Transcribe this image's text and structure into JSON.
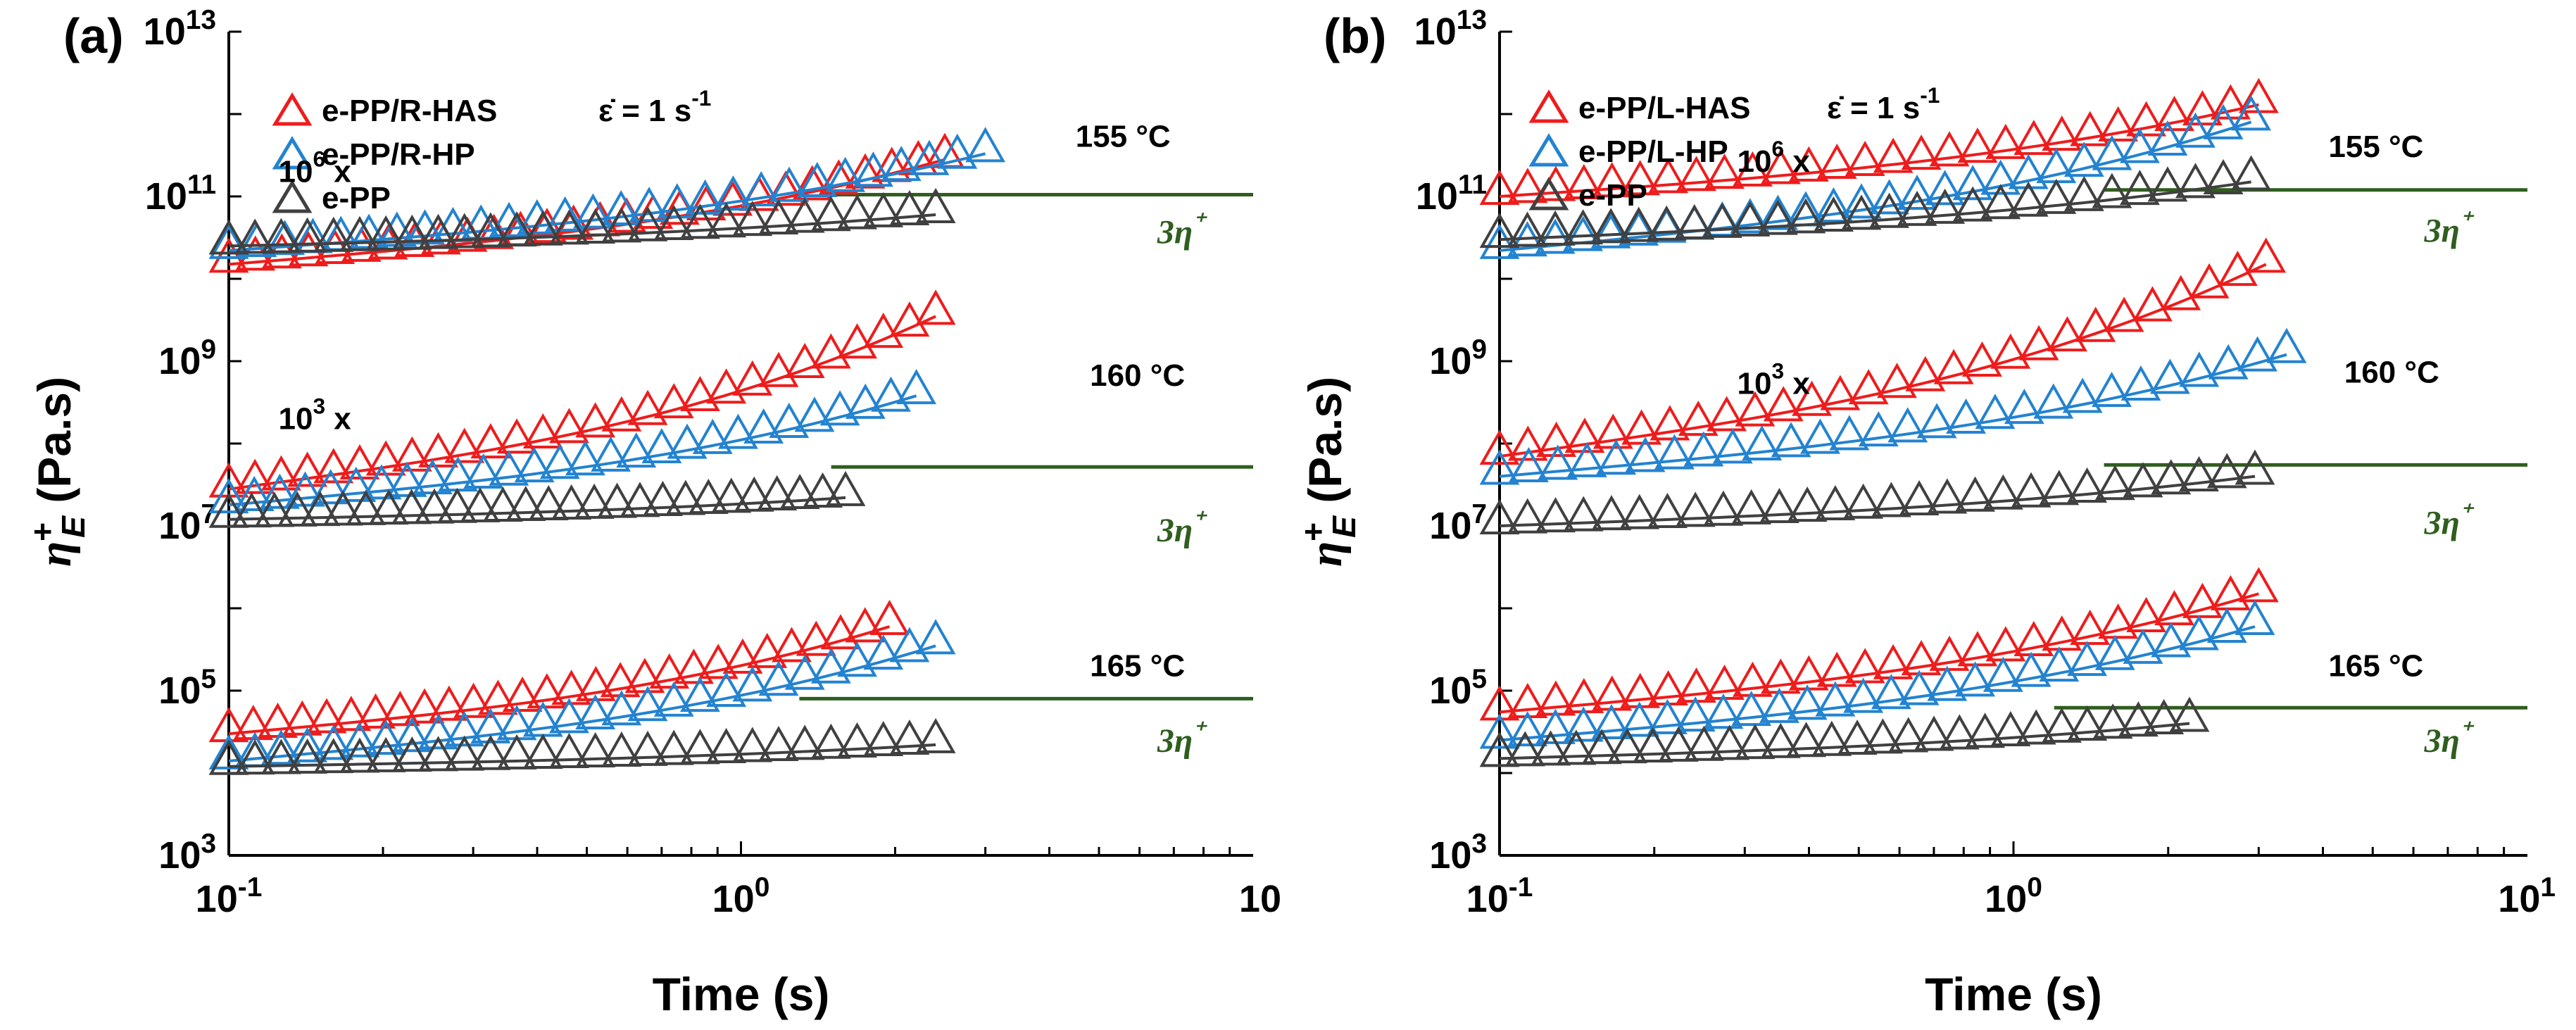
{
  "chart_data": [
    {
      "panel": "(a)",
      "type": "scatter",
      "xlabel": "Time (s)",
      "ylabel": "η⁺E (Pa.s)",
      "xscale": "log",
      "yscale": "log",
      "xlim": [
        0.1,
        10
      ],
      "ylim": [
        1000,
        10000000000000
      ],
      "x_ticks": [
        {
          "v": 0.1,
          "b": "10",
          "e": "-1"
        },
        {
          "v": 1,
          "b": "10",
          "e": "0"
        },
        {
          "v": 10,
          "b": "10",
          "e": ""
        }
      ],
      "y_ticks": [
        {
          "v": 1000,
          "b": "10",
          "e": "3"
        },
        {
          "v": 100000,
          "b": "10",
          "e": "5"
        },
        {
          "v": 10000000,
          "b": "10",
          "e": "7"
        },
        {
          "v": 1000000000,
          "b": "10",
          "e": "9"
        },
        {
          "v": 100000000000,
          "b": "10",
          "e": "11"
        },
        {
          "v": 10000000000000,
          "b": "10",
          "e": "13"
        }
      ],
      "legend": [
        {
          "name": "e-PP/R-HAS",
          "color": "#ee1c1c"
        },
        {
          "name": "e-PP/R-HP",
          "color": "#2383d0"
        },
        {
          "name": "e-PP",
          "color": "#404040"
        }
      ],
      "rate_label": {
        "b": "ε̇ = 1 s",
        "e": "-1"
      },
      "annotations": [
        {
          "text": "155 °C",
          "x": 4.5,
          "y": 400000000000
        },
        {
          "text": "160 °C",
          "x": 4.8,
          "y": 500000000
        },
        {
          "text": "165 °C",
          "x": 4.8,
          "y": 150000
        },
        {
          "b": "10",
          "e": "6",
          "s": " x",
          "x": 0.125,
          "y": 150000000000
        },
        {
          "b": "10",
          "e": "3",
          "s": " x",
          "x": 0.125,
          "y": 150000000
        }
      ],
      "threeeta": [
        {
          "text": "3η⁺",
          "x": 6.5,
          "y": 27000000000
        },
        {
          "text": "3η⁺",
          "x": 6.5,
          "y": 6500000
        },
        {
          "text": "3η⁺",
          "x": 6.5,
          "y": 18000
        }
      ],
      "lvel": [
        {
          "x0": 1.5,
          "x1": 10,
          "y": 105000000000
        },
        {
          "x0": 1.5,
          "x1": 10,
          "y": 52000000
        },
        {
          "x0": 1.3,
          "x1": 10,
          "y": 80000
        }
      ],
      "series": [
        {
          "name": "e-PP/R-HAS",
          "group": "155 °C",
          "color": "#ee1c1c",
          "t0": 0.1,
          "t1": 2.5,
          "y0": 15000000000,
          "y1": 280000000000
        },
        {
          "name": "e-PP/R-HP",
          "group": "155 °C",
          "color": "#2383d0",
          "t0": 0.1,
          "t1": 3.0,
          "y0": 22000000000,
          "y1": 330000000000
        },
        {
          "name": "e-PP",
          "group": "155 °C",
          "color": "#404040",
          "t0": 0.1,
          "t1": 2.4,
          "y0": 25000000000,
          "y1": 60000000000
        },
        {
          "name": "e-PP/R-HAS",
          "group": "160 °C",
          "color": "#ee1c1c",
          "t0": 0.1,
          "t1": 2.4,
          "y0": 28000000,
          "y1": 3500000000
        },
        {
          "name": "e-PP/R-HP",
          "group": "160 °C",
          "color": "#2383d0",
          "t0": 0.1,
          "t1": 2.2,
          "y0": 18000000,
          "y1": 380000000
        },
        {
          "name": "e-PP",
          "group": "160 °C",
          "color": "#404040",
          "t0": 0.1,
          "t1": 1.6,
          "y0": 12000000,
          "y1": 22000000
        },
        {
          "name": "e-PP/R-HAS",
          "group": "165 °C",
          "color": "#ee1c1c",
          "t0": 0.1,
          "t1": 1.95,
          "y0": 30000,
          "y1": 600000
        },
        {
          "name": "e-PP/R-HP",
          "group": "165 °C",
          "color": "#2383d0",
          "t0": 0.1,
          "t1": 2.4,
          "y0": 14000,
          "y1": 350000
        },
        {
          "name": "e-PP",
          "group": "165 °C",
          "color": "#404040",
          "t0": 0.1,
          "t1": 2.4,
          "y0": 12000,
          "y1": 22000
        }
      ]
    },
    {
      "panel": "(b)",
      "type": "scatter",
      "xlabel": "Time (s)",
      "ylabel": "η⁺E (Pa.s)",
      "xscale": "log",
      "yscale": "log",
      "xlim": [
        0.1,
        10
      ],
      "ylim": [
        1000,
        10000000000000
      ],
      "x_ticks": [
        {
          "v": 0.1,
          "b": "10",
          "e": "-1"
        },
        {
          "v": 1,
          "b": "10",
          "e": "0"
        },
        {
          "v": 10,
          "b": "10",
          "e": "1"
        }
      ],
      "y_ticks": [
        {
          "v": 1000,
          "b": "10",
          "e": "3"
        },
        {
          "v": 100000,
          "b": "10",
          "e": "5"
        },
        {
          "v": 10000000,
          "b": "10",
          "e": "7"
        },
        {
          "v": 1000000000,
          "b": "10",
          "e": "9"
        },
        {
          "v": 100000000000,
          "b": "10",
          "e": "11"
        },
        {
          "v": 10000000000000,
          "b": "10",
          "e": "13"
        }
      ],
      "legend": [
        {
          "name": "e-PP/L-HAS",
          "color": "#ee1c1c"
        },
        {
          "name": "e-PP/L-HP",
          "color": "#2383d0"
        },
        {
          "name": "e-PP",
          "color": "#404040"
        }
      ],
      "rate_label": {
        "b": "ε̇ = 1 s",
        "e": "-1"
      },
      "annotations": [
        {
          "text": "155 °C",
          "x": 4.1,
          "y": 300000000000
        },
        {
          "text": "160 °C",
          "x": 4.4,
          "y": 550000000
        },
        {
          "text": "165 °C",
          "x": 4.1,
          "y": 150000
        },
        {
          "b": "10",
          "e": "6",
          "s": " x",
          "x": 0.29,
          "y": 200000000000
        },
        {
          "b": "10",
          "e": "3",
          "s": " x",
          "x": 0.29,
          "y": 400000000
        }
      ],
      "threeeta": [
        {
          "text": "3η⁺",
          "x": 6.3,
          "y": 28000000000
        },
        {
          "text": "3η⁺",
          "x": 6.3,
          "y": 8000000
        },
        {
          "text": "3η⁺",
          "x": 6.3,
          "y": 18000
        }
      ],
      "lvel": [
        {
          "x0": 1.5,
          "x1": 10,
          "y": 120000000000
        },
        {
          "x0": 1.5,
          "x1": 10,
          "y": 55000000
        },
        {
          "x0": 1.2,
          "x1": 10,
          "y": 62000
        }
      ],
      "series": [
        {
          "name": "e-PP/L-HAS",
          "group": "155 °C",
          "color": "#ee1c1c",
          "t0": 0.1,
          "t1": 3.0,
          "y0": 100000000000,
          "y1": 1300000000000
        },
        {
          "name": "e-PP/L-HP",
          "group": "155 °C",
          "color": "#2383d0",
          "t0": 0.1,
          "t1": 2.9,
          "y0": 22000000000,
          "y1": 800000000000
        },
        {
          "name": "e-PP",
          "group": "155 °C",
          "color": "#404040",
          "t0": 0.1,
          "t1": 2.9,
          "y0": 30000000000,
          "y1": 150000000000
        },
        {
          "name": "e-PP/L-HAS",
          "group": "160 °C",
          "color": "#ee1c1c",
          "t0": 0.1,
          "t1": 3.1,
          "y0": 70000000,
          "y1": 15000000000
        },
        {
          "name": "e-PP/L-HP",
          "group": "160 °C",
          "color": "#2383d0",
          "t0": 0.1,
          "t1": 3.4,
          "y0": 40000000,
          "y1": 1200000000
        },
        {
          "name": "e-PP",
          "group": "160 °C",
          "color": "#404040",
          "t0": 0.1,
          "t1": 2.95,
          "y0": 10000000,
          "y1": 40000000
        },
        {
          "name": "e-PP/L-HAS",
          "group": "165 °C",
          "color": "#ee1c1c",
          "t0": 0.1,
          "t1": 3.0,
          "y0": 55000,
          "y1": 1500000
        },
        {
          "name": "e-PP/L-HP",
          "group": "165 °C",
          "color": "#2383d0",
          "t0": 0.1,
          "t1": 2.95,
          "y0": 25000,
          "y1": 600000
        },
        {
          "name": "e-PP",
          "group": "165 °C",
          "color": "#404040",
          "t0": 0.1,
          "t1": 2.2,
          "y0": 15000,
          "y1": 40000
        }
      ]
    }
  ]
}
